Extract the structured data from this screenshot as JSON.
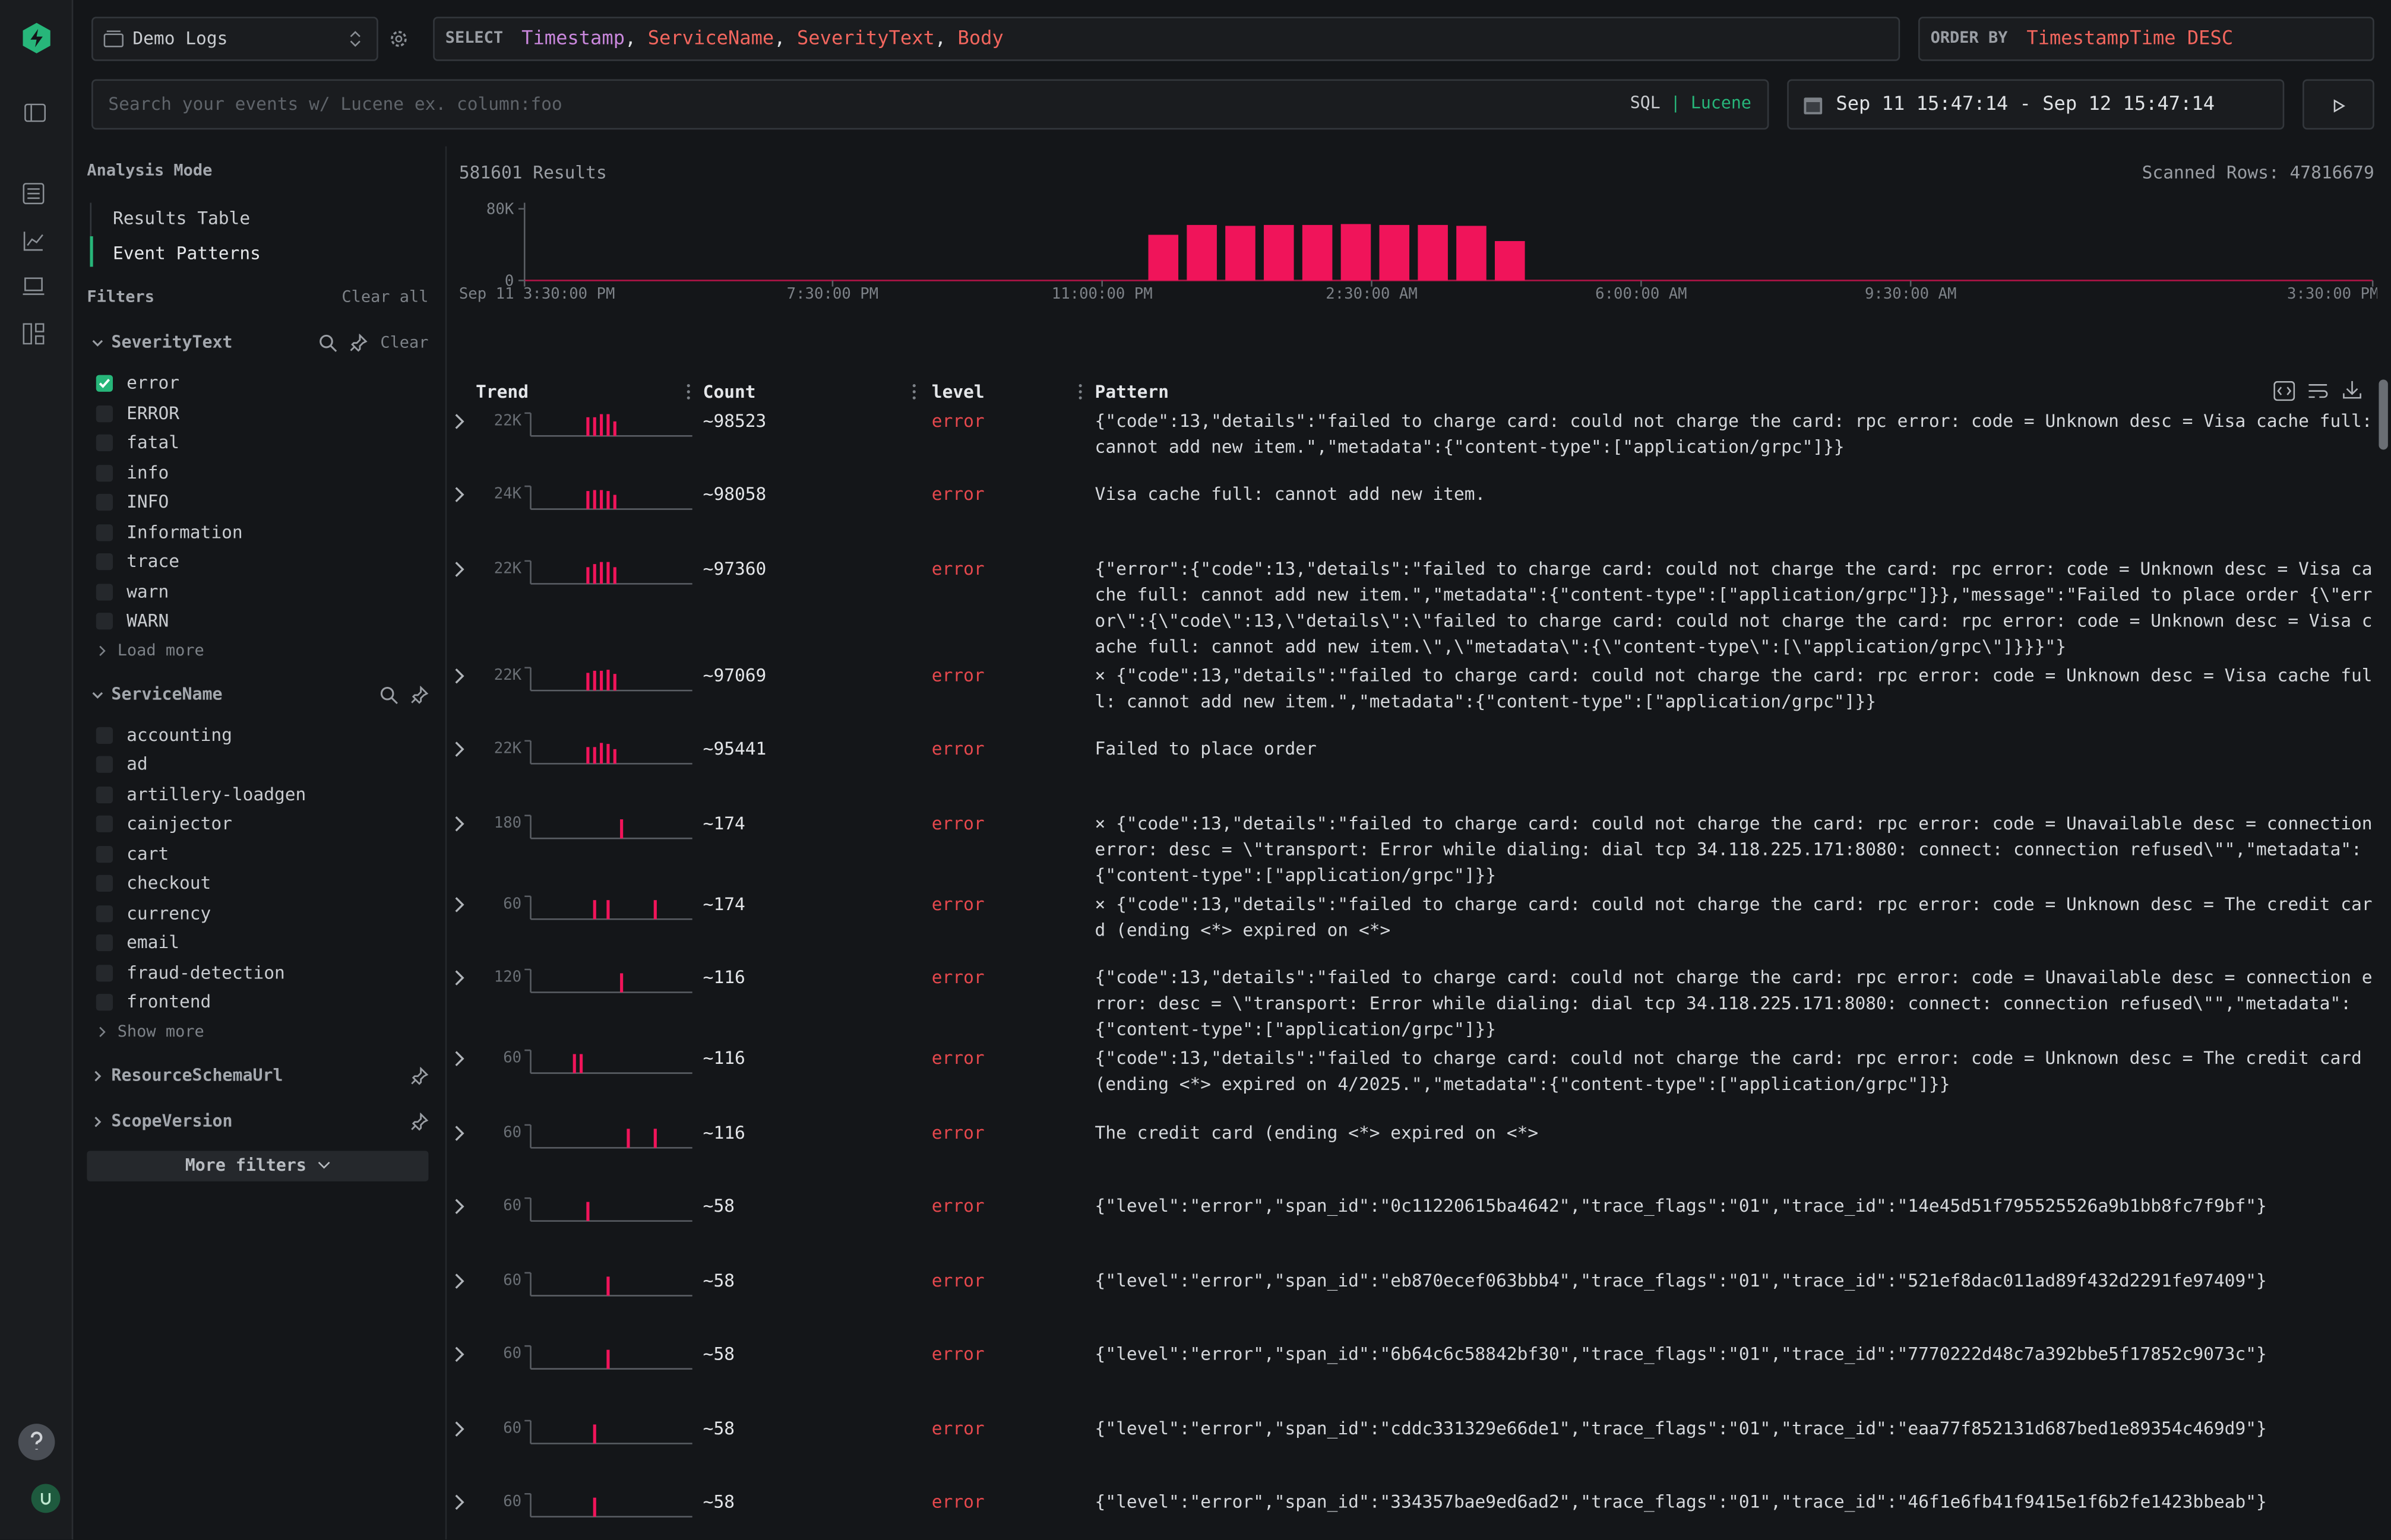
{
  "source": "Demo Logs",
  "select": {
    "keyword": "SELECT",
    "columns": [
      "Timestamp",
      "ServiceName",
      "SeverityText",
      "Body"
    ],
    "separator": ","
  },
  "order_by": {
    "keyword": "ORDER BY",
    "expression": "TimestampTime DESC"
  },
  "search": {
    "placeholder": "Search your events w/ Lucene ex. column:foo",
    "modes": [
      "SQL",
      "Lucene"
    ],
    "divider": "|"
  },
  "time_range": "Sep 11 15:47:14 - Sep 12 15:47:14",
  "sidebar": {
    "analysis_title": "Analysis Mode",
    "modes": [
      "Results Table",
      "Event Patterns"
    ],
    "filters_title": "Filters",
    "clear_all": "Clear all",
    "groups": [
      {
        "name": "SeverityText",
        "clear": "Clear",
        "options": [
          {
            "label": "error",
            "checked": true
          },
          {
            "label": "ERROR",
            "checked": false
          },
          {
            "label": "fatal",
            "checked": false
          },
          {
            "label": "info",
            "checked": false
          },
          {
            "label": "INFO",
            "checked": false
          },
          {
            "label": "Information",
            "checked": false
          },
          {
            "label": "trace",
            "checked": false
          },
          {
            "label": "warn",
            "checked": false
          },
          {
            "label": "WARN",
            "checked": false
          }
        ],
        "more": "Load more"
      },
      {
        "name": "ServiceName",
        "options": [
          {
            "label": "accounting",
            "checked": false
          },
          {
            "label": "ad",
            "checked": false
          },
          {
            "label": "artillery-loadgen",
            "checked": false
          },
          {
            "label": "cainjector",
            "checked": false
          },
          {
            "label": "cart",
            "checked": false
          },
          {
            "label": "checkout",
            "checked": false
          },
          {
            "label": "currency",
            "checked": false
          },
          {
            "label": "email",
            "checked": false
          },
          {
            "label": "fraud-detection",
            "checked": false
          },
          {
            "label": "frontend",
            "checked": false
          }
        ],
        "more": "Show more"
      },
      {
        "name": "ResourceSchemaUrl"
      },
      {
        "name": "ScopeVersion"
      }
    ],
    "more_filters": "More filters"
  },
  "results": {
    "count": "581601 Results",
    "scanned": "Scanned Rows: 47816679"
  },
  "chart_data": {
    "type": "bar",
    "color": "#f0145a",
    "values": [
      0,
      0,
      0,
      0,
      0,
      0,
      0,
      0,
      0,
      0,
      0,
      0,
      0,
      0,
      0,
      0,
      51000,
      62000,
      61000,
      62000,
      62000,
      63000,
      62000,
      62000,
      61000,
      44000,
      0,
      0,
      0,
      0,
      0,
      0,
      0,
      0,
      0,
      0,
      0,
      0,
      0,
      0,
      0,
      0,
      0,
      0,
      0,
      0,
      0,
      0
    ],
    "xlim": [
      0,
      48
    ],
    "xticks": [
      {
        "value": 0,
        "label": "Sep 11 3:30:00 PM"
      },
      {
        "value": 8,
        "label": "7:30:00 PM"
      },
      {
        "value": 15,
        "label": "11:00:00 PM"
      },
      {
        "value": 22,
        "label": "2:30:00 AM"
      },
      {
        "value": 29,
        "label": "6:00:00 AM"
      },
      {
        "value": 36,
        "label": "9:30:00 AM"
      },
      {
        "value": 48,
        "label": "3:30:00 PM"
      }
    ],
    "ylim": [
      0,
      80000
    ],
    "yticks": [
      0,
      {
        "value": 80000,
        "label": "80K"
      }
    ]
  },
  "table": {
    "columns": [
      "Trend",
      "Count",
      "level",
      "Pattern"
    ],
    "rows": [
      {
        "trend_max": {
          "value": 22000,
          "label": "22K"
        },
        "trend": [
          0,
          0,
          0,
          0,
          0,
          0,
          0,
          0,
          18000,
          18000,
          21000,
          21000,
          14000,
          0,
          0,
          0,
          0,
          0,
          0,
          0,
          0,
          0,
          0,
          0
        ],
        "count": "~98523",
        "level": "error",
        "pattern": "{\"code\":13,\"details\":\"failed to charge card: could not charge the card: rpc error: code = Unknown desc = Visa cache full: cannot add new item.\",\"metadata\":{\"content-type\":[\"application/grpc\"]}}"
      },
      {
        "trend_max": {
          "value": 24000,
          "label": "24K"
        },
        "trend": [
          0,
          0,
          0,
          0,
          0,
          0,
          0,
          0,
          19000,
          20000,
          20000,
          19000,
          15000,
          0,
          0,
          0,
          0,
          0,
          0,
          0,
          0,
          0,
          0,
          0
        ],
        "count": "~98058",
        "level": "error",
        "pattern": "Visa cache full: cannot add new item."
      },
      {
        "trend_max": {
          "value": 22000,
          "label": "22K"
        },
        "trend": [
          0,
          0,
          0,
          0,
          0,
          0,
          0,
          0,
          16000,
          19000,
          21000,
          21000,
          16000,
          0,
          0,
          0,
          0,
          0,
          0,
          0,
          0,
          0,
          0,
          0
        ],
        "count": "~97360",
        "level": "error",
        "pattern": "{\"error\":{\"code\":13,\"details\":\"failed to charge card: could not charge the card: rpc error: code = Unknown desc = Visa cache full: cannot add new item.\",\"metadata\":{\"content-type\":[\"application/grpc\"]}},\"message\":\"Failed to place order {\\\"error\\\":{\\\"code\\\":13,\\\"details\\\":\\\"failed to charge card: could not charge the card: rpc error: code = Unknown desc = Visa cache full: cannot add new item.\\\",\\\"metadata\\\":{\\\"content-type\\\":[\\\"application/grpc\\\"]}}}\"}"
      },
      {
        "trend_max": {
          "value": 22000,
          "label": "22K"
        },
        "trend": [
          0,
          0,
          0,
          0,
          0,
          0,
          0,
          0,
          17000,
          19000,
          19000,
          20000,
          16000,
          0,
          0,
          0,
          0,
          0,
          0,
          0,
          0,
          0,
          0,
          0
        ],
        "count": "~97069",
        "level": "error",
        "pattern": "× {\"code\":13,\"details\":\"failed to charge card: could not charge the card: rpc error: code = Unknown desc = Visa cache full: cannot add new item.\",\"metadata\":{\"content-type\":[\"application/grpc\"]}}"
      },
      {
        "trend_max": {
          "value": 22000,
          "label": "22K"
        },
        "trend": [
          0,
          0,
          0,
          0,
          0,
          0,
          0,
          0,
          16000,
          16000,
          20000,
          19000,
          14000,
          0,
          0,
          0,
          0,
          0,
          0,
          0,
          0,
          0,
          0,
          0
        ],
        "count": "~95441",
        "level": "error",
        "pattern": "Failed to place order"
      },
      {
        "trend_max": 180,
        "trend": [
          0,
          0,
          0,
          0,
          0,
          0,
          0,
          0,
          0,
          0,
          0,
          0,
          0,
          150,
          0,
          0,
          0,
          0,
          0,
          0,
          0,
          0,
          0,
          0
        ],
        "count": "~174",
        "level": "error",
        "pattern": "× {\"code\":13,\"details\":\"failed to charge card: could not charge the card: rpc error: code = Unavailable desc = connection error: desc = \\\"transport: Error while dialing: dial tcp 34.118.225.171:8080: connect: connection refused\\\"\",\"metadata\":{\"content-type\":[\"application/grpc\"]}}"
      },
      {
        "trend_max": 60,
        "trend": [
          0,
          0,
          0,
          0,
          0,
          0,
          0,
          0,
          0,
          50,
          0,
          50,
          0,
          0,
          0,
          0,
          0,
          0,
          50,
          0,
          0,
          0,
          0,
          0
        ],
        "count": "~174",
        "level": "error",
        "pattern": "× {\"code\":13,\"details\":\"failed to charge card: could not charge the card: rpc error: code = Unknown desc = The credit card (ending <*> expired on <*>"
      },
      {
        "trend_max": 120,
        "trend": [
          0,
          0,
          0,
          0,
          0,
          0,
          0,
          0,
          0,
          0,
          0,
          0,
          0,
          100,
          0,
          0,
          0,
          0,
          0,
          0,
          0,
          0,
          0,
          0
        ],
        "count": "~116",
        "level": "error",
        "pattern": "{\"code\":13,\"details\":\"failed to charge card: could not charge the card: rpc error: code = Unavailable desc = connection error: desc = \\\"transport: Error while dialing: dial tcp 34.118.225.171:8080: connect: connection refused\\\"\",\"metadata\":{\"content-type\":[\"application/grpc\"]}}"
      },
      {
        "trend_max": 60,
        "trend": [
          0,
          0,
          0,
          0,
          0,
          0,
          50,
          50,
          0,
          0,
          0,
          0,
          0,
          0,
          0,
          0,
          0,
          0,
          0,
          0,
          0,
          0,
          0,
          0
        ],
        "count": "~116",
        "level": "error",
        "pattern": "{\"code\":13,\"details\":\"failed to charge card: could not charge the card: rpc error: code = Unknown desc = The credit card (ending <*> expired on 4/2025.\",\"metadata\":{\"content-type\":[\"application/grpc\"]}}"
      },
      {
        "trend_max": 60,
        "trend": [
          0,
          0,
          0,
          0,
          0,
          0,
          0,
          0,
          0,
          0,
          0,
          0,
          0,
          0,
          50,
          0,
          0,
          0,
          50,
          0,
          0,
          0,
          0,
          0
        ],
        "count": "~116",
        "level": "error",
        "pattern": "The credit card (ending <*> expired on <*>"
      },
      {
        "trend_max": 60,
        "trend": [
          0,
          0,
          0,
          0,
          0,
          0,
          0,
          0,
          50,
          0,
          0,
          0,
          0,
          0,
          0,
          0,
          0,
          0,
          0,
          0,
          0,
          0,
          0,
          0
        ],
        "count": "~58",
        "level": "error",
        "pattern": "{\"level\":\"error\",\"span_id\":\"0c11220615ba4642\",\"trace_flags\":\"01\",\"trace_id\":\"14e45d51f795525526a9b1bb8fc7f9bf\"}"
      },
      {
        "trend_max": 60,
        "trend": [
          0,
          0,
          0,
          0,
          0,
          0,
          0,
          0,
          0,
          0,
          0,
          50,
          0,
          0,
          0,
          0,
          0,
          0,
          0,
          0,
          0,
          0,
          0,
          0
        ],
        "count": "~58",
        "level": "error",
        "pattern": "{\"level\":\"error\",\"span_id\":\"eb870ecef063bbb4\",\"trace_flags\":\"01\",\"trace_id\":\"521ef8dac011ad89f432d2291fe97409\"}"
      },
      {
        "trend_max": 60,
        "trend": [
          0,
          0,
          0,
          0,
          0,
          0,
          0,
          0,
          0,
          0,
          0,
          50,
          0,
          0,
          0,
          0,
          0,
          0,
          0,
          0,
          0,
          0,
          0,
          0
        ],
        "count": "~58",
        "level": "error",
        "pattern": "{\"level\":\"error\",\"span_id\":\"6b64c6c58842bf30\",\"trace_flags\":\"01\",\"trace_id\":\"7770222d48c7a392bbe5f17852c9073c\"}"
      },
      {
        "trend_max": 60,
        "trend": [
          0,
          0,
          0,
          0,
          0,
          0,
          0,
          0,
          0,
          50,
          0,
          0,
          0,
          0,
          0,
          0,
          0,
          0,
          0,
          0,
          0,
          0,
          0,
          0
        ],
        "count": "~58",
        "level": "error",
        "pattern": "{\"level\":\"error\",\"span_id\":\"cddc331329e66de1\",\"trace_flags\":\"01\",\"trace_id\":\"eaa77f852131d687bed1e89354c469d9\"}"
      },
      {
        "trend_max": 60,
        "trend": [
          0,
          0,
          0,
          0,
          0,
          0,
          0,
          0,
          0,
          50,
          0,
          0,
          0,
          0,
          0,
          0,
          0,
          0,
          0,
          0,
          0,
          0,
          0,
          0
        ],
        "count": "~58",
        "level": "error",
        "pattern": "{\"level\":\"error\",\"span_id\":\"334357bae9ed6ad2\",\"trace_flags\":\"01\",\"trace_id\":\"46f1e6fb41f9415e1f6b2fe1423bbeab\"}"
      }
    ]
  }
}
